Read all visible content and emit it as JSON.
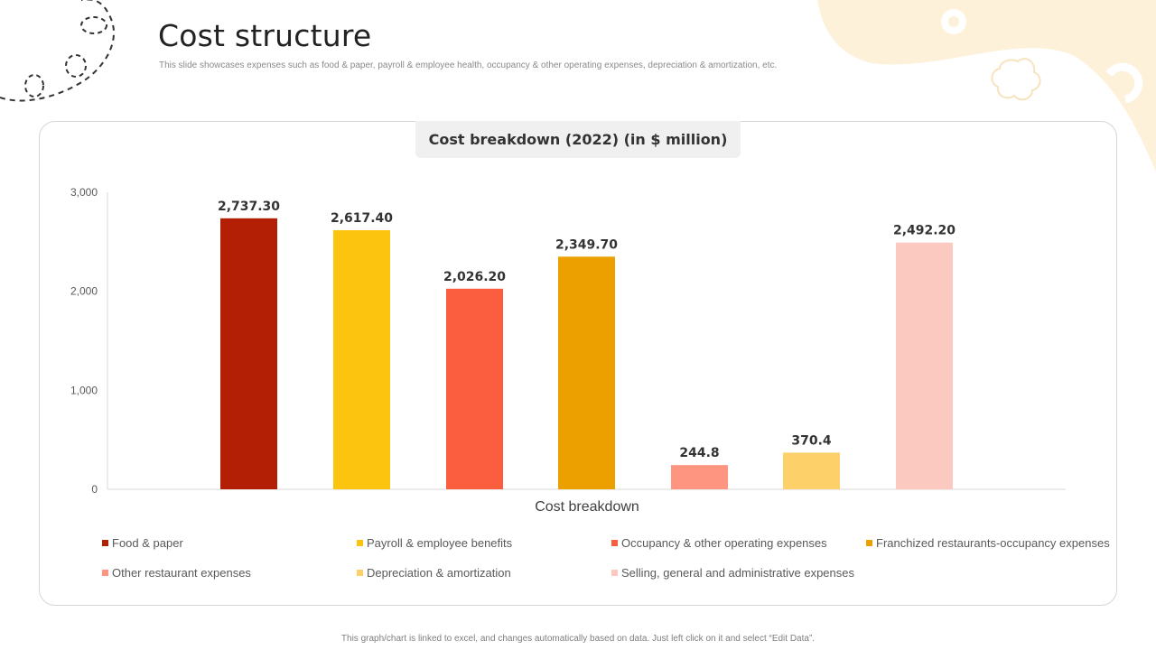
{
  "page": {
    "title": "Cost structure",
    "subtitle": "This slide showcases expenses such as food & paper, payroll & employee health, occupancy & other operating expenses, depreciation & amortization, etc.",
    "footnote": "This graph/chart is linked to excel, and changes automatically based on data. Just left click on it and select “Edit Data”."
  },
  "chart_data": {
    "type": "bar",
    "title": "Cost breakdown (2022) (in $ million)",
    "xlabel": "Cost breakdown",
    "ylabel": "",
    "ylim": [
      0,
      3000
    ],
    "yticks": [
      0,
      1000,
      2000,
      3000
    ],
    "ytick_labels": [
      "0",
      "1,000",
      "2,000",
      "3,000"
    ],
    "grid": false,
    "legend_position": "bottom",
    "series": [
      {
        "name": "Food & paper",
        "value": 2737.3,
        "label": "2,737.30",
        "color": "#B21F04"
      },
      {
        "name": "Payroll & employee benefits",
        "value": 2617.4,
        "label": "2,617.40",
        "color": "#FCC30F"
      },
      {
        "name": "Occupancy & other operating expenses",
        "value": 2026.2,
        "label": "2,026.20",
        "color": "#FB5E3F"
      },
      {
        "name": "Franchized restaurants-occupancy expenses",
        "value": 2349.7,
        "label": "2,349.70",
        "color": "#EBA000"
      },
      {
        "name": "Other restaurant expenses",
        "value": 244.8,
        "label": "244.8",
        "color": "#FD9580"
      },
      {
        "name": "Depreciation & amortization",
        "value": 370.4,
        "label": "370.4",
        "color": "#FDD06A"
      },
      {
        "name": "Selling, general and administrative expenses",
        "value": 2492.2,
        "label": "2,492.20",
        "color": "#FCC9C0"
      }
    ]
  }
}
